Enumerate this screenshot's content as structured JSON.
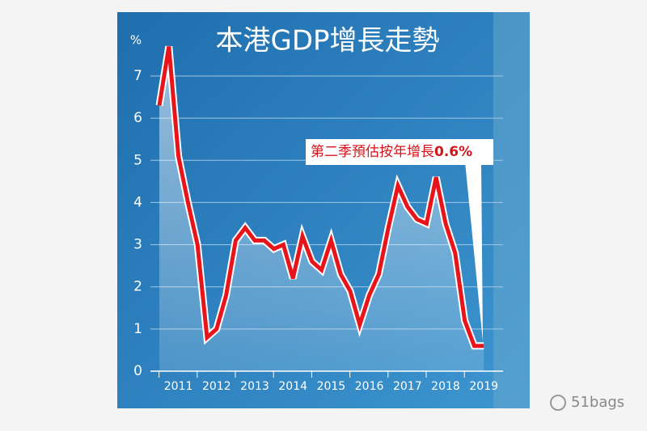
{
  "chart_data": {
    "type": "line",
    "title": "本港GDP增長走勢",
    "y_unit": "%",
    "categories": [
      null,
      null,
      "2011",
      null,
      null,
      null,
      "2012",
      null,
      null,
      null,
      "2013",
      null,
      null,
      null,
      "2014",
      null,
      null,
      null,
      "2015",
      null,
      null,
      null,
      "2016",
      null,
      null,
      null,
      "2017",
      null,
      null,
      null,
      "2018",
      null,
      null,
      null,
      "2019"
    ],
    "series": [
      {
        "name": null,
        "color": "#e8141b",
        "values": [
          6.3,
          7.7,
          5.1,
          4.0,
          3.0,
          0.8,
          1.0,
          1.8,
          3.1,
          3.4,
          3.1,
          3.1,
          2.9,
          3.0,
          2.2,
          3.2,
          2.6,
          2.4,
          3.1,
          2.3,
          1.9,
          1.1,
          1.8,
          2.3,
          3.4,
          4.4,
          3.9,
          3.6,
          3.5,
          4.6,
          3.5,
          2.8,
          1.2,
          0.6,
          0.6
        ]
      }
    ],
    "ylim": [
      0,
      7
    ],
    "yticks": [
      0,
      1,
      2,
      3,
      4,
      5,
      6,
      7
    ],
    "grid": true,
    "annotation": {
      "text": "第二季預估按年增長",
      "value_text": "0.6%"
    },
    "watermark": "51bags"
  }
}
